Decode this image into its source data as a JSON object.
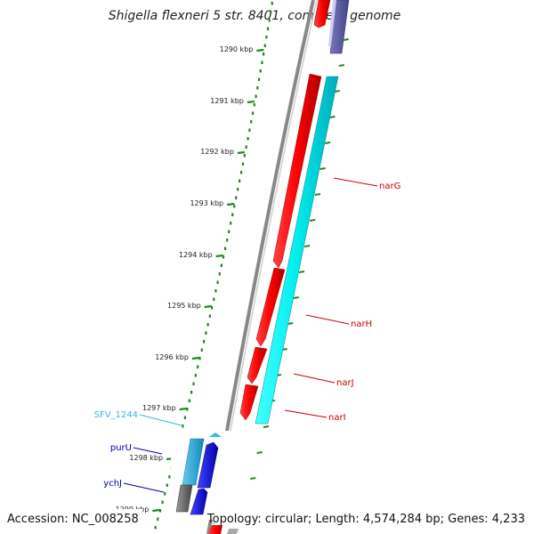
{
  "title": "Shigella flexneri 5 str. 8401, complete genome",
  "footer": {
    "accession": "Accession: NC_008258",
    "summary": "Topology: circular; Length: 4,574,284 bp; Genes: 4,233"
  },
  "ticks": [
    "1290 kbp",
    "1291 kbp",
    "1292 kbp",
    "1293 kbp",
    "1294 kbp",
    "1295 kbp",
    "1296 kbp",
    "1297 kbp",
    "1298 kbp",
    "1299 kbp"
  ],
  "genes": [
    {
      "name": "narG",
      "color": "#cc0000"
    },
    {
      "name": "narH",
      "color": "#cc0000"
    },
    {
      "name": "narJ",
      "color": "#cc0000"
    },
    {
      "name": "narI",
      "color": "#cc0000"
    },
    {
      "name": "SFV_1244",
      "color": "#33bbdd"
    },
    {
      "name": "purU",
      "color": "#0000aa"
    },
    {
      "name": "ychJ",
      "color": "#0000aa"
    }
  ],
  "colors": {
    "backbone": "#888888",
    "cds": "#ff0000",
    "rna_track": "#00ffff",
    "ruler": "#228822",
    "reverse_cds": "#0000ff",
    "misc_feature": "#5555aa",
    "pseudogene": "#666666"
  }
}
